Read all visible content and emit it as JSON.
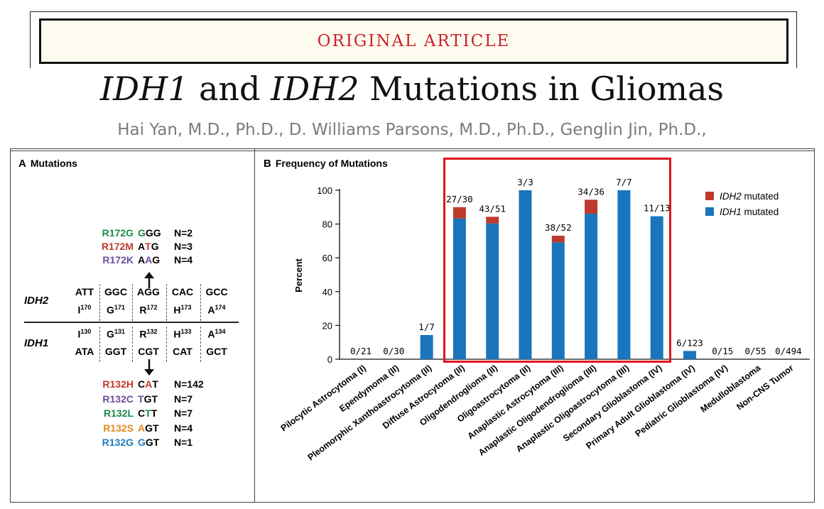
{
  "header": {
    "banner": "ORIGINAL ARTICLE",
    "title_part1": "IDH1",
    "title_part2": " and ",
    "title_part3": "IDH2",
    "title_part4": " Mutations in Gliomas",
    "authors": "Hai Yan, M.D., Ph.D., D. Williams Parsons, M.D., Ph.D., Genglin Jin, Ph.D.,"
  },
  "panel_a": {
    "letter": "A",
    "title": "Mutations",
    "idh2_label": "IDH2",
    "idh1_label": "IDH1",
    "idh2_mutations": [
      {
        "name": "R172G",
        "codon_pre": "",
        "codon_hi": "G",
        "codon_post": "GG",
        "n": "N=2",
        "color": "#1b8a4a"
      },
      {
        "name": "R172M",
        "codon_pre": "A",
        "codon_hi": "T",
        "codon_post": "G",
        "n": "N=3",
        "color": "#c0392b"
      },
      {
        "name": "R172K",
        "codon_pre": "A",
        "codon_hi": "A",
        "codon_post": "G",
        "n": "N=4",
        "color": "#6a4c9c"
      }
    ],
    "idh2_codons": [
      "ATT",
      "GGC",
      "AGG",
      "CAC",
      "GCC"
    ],
    "idh2_residues": [
      [
        "I",
        "170"
      ],
      [
        "G",
        "171"
      ],
      [
        "R",
        "172"
      ],
      [
        "H",
        "173"
      ],
      [
        "A",
        "174"
      ]
    ],
    "idh1_residues": [
      [
        "I",
        "130"
      ],
      [
        "G",
        "131"
      ],
      [
        "R",
        "132"
      ],
      [
        "H",
        "133"
      ],
      [
        "A",
        "134"
      ]
    ],
    "idh1_codons": [
      "ATA",
      "GGT",
      "CGT",
      "CAT",
      "GCT"
    ],
    "idh1_mutations": [
      {
        "name": "R132H",
        "codon_pre": "C",
        "codon_hi": "A",
        "codon_post": "T",
        "n": "N=142",
        "color": "#c0392b"
      },
      {
        "name": "R132C",
        "codon_pre": "",
        "codon_hi": "T",
        "codon_post": "GT",
        "n": "N=7",
        "color": "#6a4c9c"
      },
      {
        "name": "R132L",
        "codon_pre": "C",
        "codon_hi": "T",
        "codon_post": "T",
        "n": "N=7",
        "color": "#1b8a4a"
      },
      {
        "name": "R132S",
        "codon_pre": "",
        "codon_hi": "A",
        "codon_post": "GT",
        "n": "N=4",
        "color": "#e08a1e"
      },
      {
        "name": "R132G",
        "codon_pre": "",
        "codon_hi": "G",
        "codon_post": "GT",
        "n": "N=1",
        "color": "#1f7bbf"
      }
    ]
  },
  "panel_b": {
    "letter": "B",
    "title": "Frequency of Mutations"
  },
  "chart_data": {
    "type": "bar",
    "stacked": true,
    "ylabel": "Percent",
    "ylim": [
      0,
      100
    ],
    "yticks": [
      0,
      20,
      40,
      60,
      80,
      100
    ],
    "categories": [
      "Pilocytic Astrocytoma (I)",
      "Ependymoma (II)",
      "Pleomorphic Xanthoastrocytoma (II)",
      "Diffuse Astrocytoma (II)",
      "Oligodendroglioma (II)",
      "Oligoastrocytoma (II)",
      "Anaplastic Astrocytoma (III)",
      "Anaplastic Oligodendroglioma (III)",
      "Anaplastic Oligoastrocytoma (III)",
      "Secondary Glioblastoma (IV)",
      "Primary Adult Glioblastoma (IV)",
      "Pediatric Glioblastoma (IV)",
      "Medulloblastoma",
      "Non-CNS Tumor"
    ],
    "bar_labels": [
      "0/21",
      "0/30",
      "1/7",
      "27/30",
      "43/51",
      "3/3",
      "38/52",
      "34/36",
      "7/7",
      "11/13",
      "6/123",
      "0/15",
      "0/55",
      "0/494"
    ],
    "series": [
      {
        "name_italic": "IDH1",
        "name_rest": " mutated",
        "color": "#1a75bc",
        "values": [
          0,
          0,
          14.3,
          83.3,
          80.4,
          100,
          69.2,
          86.1,
          100,
          84.6,
          4.9,
          0,
          0,
          0
        ]
      },
      {
        "name_italic": "IDH2",
        "name_rest": " mutated",
        "color": "#be3a2c",
        "values": [
          0,
          0,
          0,
          6.7,
          3.9,
          0,
          3.9,
          8.3,
          0,
          0,
          0,
          0,
          0,
          0
        ]
      }
    ],
    "legend_position": "top-right",
    "grid": false
  }
}
